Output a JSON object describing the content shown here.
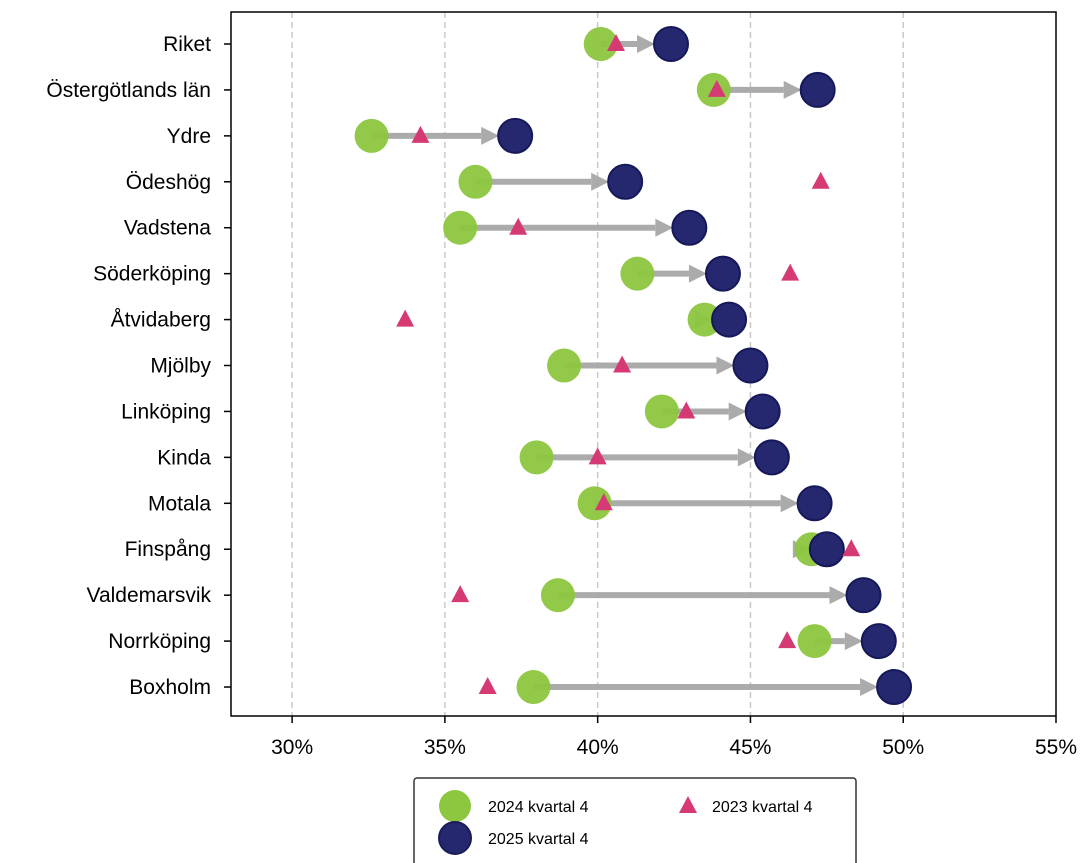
{
  "chart_data": {
    "type": "scatter",
    "categories": [
      "Riket",
      "Östergötlands län",
      "Ydre",
      "Ödeshög",
      "Vadstena",
      "Söderköping",
      "Åtvidaberg",
      "Mjölby",
      "Linköping",
      "Kinda",
      "Motala",
      "Finspång",
      "Valdemarsvik",
      "Norrköping",
      "Boxholm"
    ],
    "series": [
      {
        "name": "2024 kvartal 4",
        "marker": "circle",
        "color": "#8DC63F",
        "values": [
          40.1,
          43.8,
          32.6,
          36.0,
          35.5,
          41.3,
          43.5,
          38.9,
          42.1,
          38.0,
          39.9,
          47.0,
          38.7,
          47.1,
          37.9
        ]
      },
      {
        "name": "2025 kvartal 4",
        "marker": "circle",
        "color": "#25286E",
        "values": [
          42.4,
          47.2,
          37.3,
          40.9,
          43.0,
          44.1,
          44.3,
          45.0,
          45.4,
          45.7,
          47.1,
          47.5,
          48.7,
          49.2,
          49.7
        ]
      },
      {
        "name": "2023 kvartal 4",
        "marker": "triangle",
        "color": "#D63A74",
        "values": [
          40.6,
          43.9,
          34.2,
          47.3,
          37.4,
          46.3,
          33.7,
          40.8,
          42.9,
          40.0,
          40.2,
          48.3,
          35.5,
          46.2,
          36.4
        ]
      }
    ],
    "arrows": {
      "from": "2024 kvartal 4",
      "to": "2025 kvartal 4",
      "color": "#A6A6A6"
    },
    "xlim": [
      28,
      55
    ],
    "xticks": [
      30,
      35,
      40,
      45,
      50,
      55
    ],
    "xtick_labels": [
      "30%",
      "35%",
      "40%",
      "45%",
      "50%",
      "55%"
    ],
    "grid": "vertical dashed",
    "legend": {
      "placement": "bottom-center",
      "entries": [
        "2024 kvartal 4",
        "2023 kvartal 4",
        "2025 kvartal 4"
      ]
    }
  }
}
